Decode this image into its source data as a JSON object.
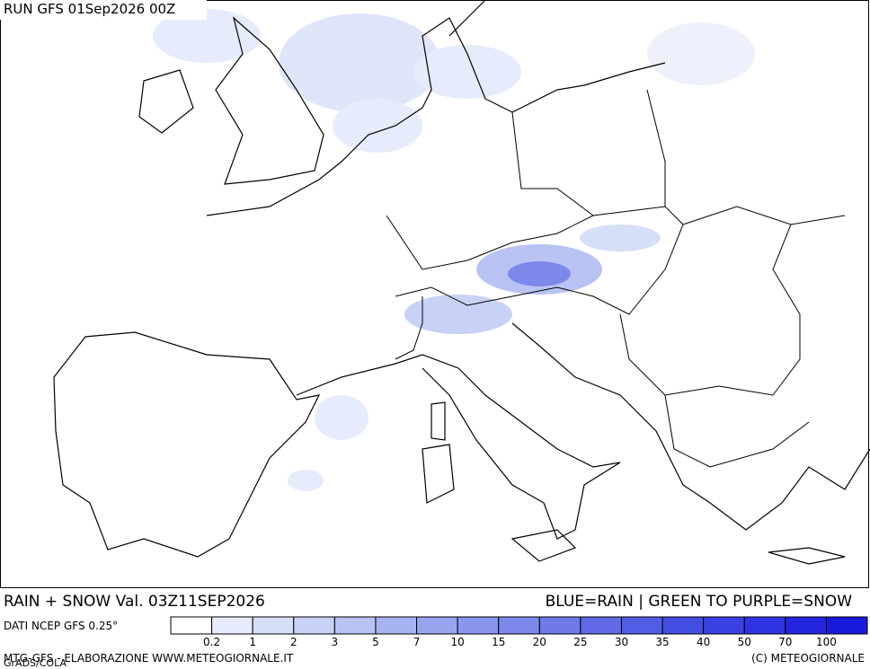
{
  "header": {
    "run": "RUN GFS 01Sep2026 00Z"
  },
  "footer": {
    "title": "RAIN + SNOW Val. 03Z11SEP2026",
    "key": "BLUE=RAIN | GREEN TO PURPLE=SNOW",
    "source": "DATI NCEP GFS 0.25°",
    "credit": "MTG-GFS - ELABORAZIONE WWW.METEOGIORNALE.IT",
    "grads": "GrADS/COLA",
    "copyright": "(C) METEOGIORNALE"
  },
  "legend": {
    "labels": [
      0.2,
      1,
      2,
      3,
      5,
      7,
      10,
      15,
      20,
      25,
      30,
      35,
      40,
      50,
      70,
      100
    ],
    "colors": [
      "#ffffff",
      "#e6ecfb",
      "#d6dff8",
      "#c8d2f6",
      "#b8c3f4",
      "#a8b4f1",
      "#98a5ee",
      "#8a96ec",
      "#7c88ea",
      "#6e7ae8",
      "#606ae6",
      "#525ce4",
      "#444de2",
      "#3a40e2",
      "#2f33e2",
      "#2426e0",
      "#1a1adc"
    ]
  }
}
